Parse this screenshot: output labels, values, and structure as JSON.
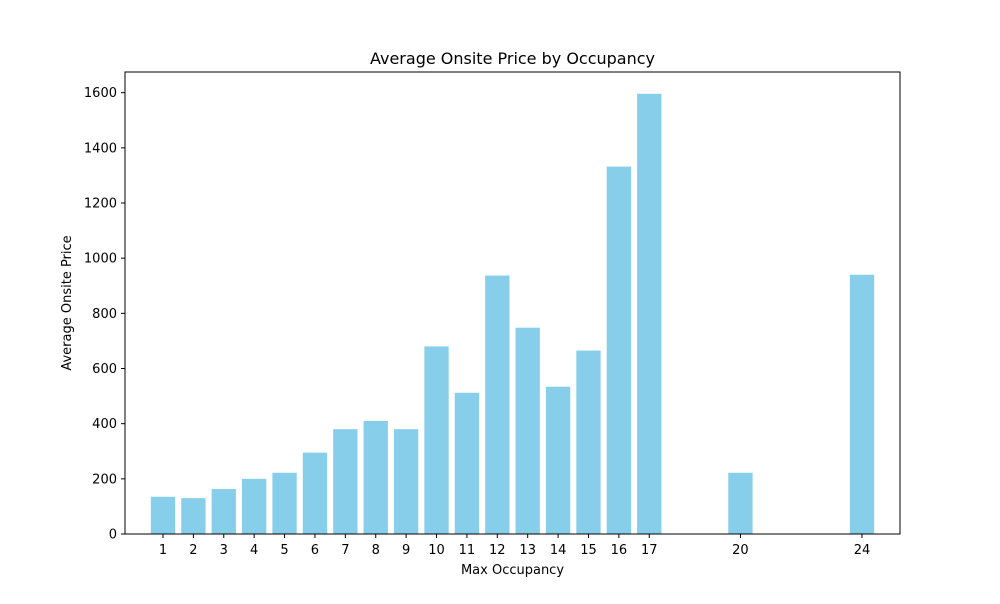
{
  "chart_data": {
    "type": "bar",
    "title": "Average Onsite Price by Occupancy",
    "xlabel": "Max Occupancy",
    "ylabel": "Average Onsite Price",
    "x": [
      1,
      2,
      3,
      4,
      5,
      6,
      7,
      8,
      9,
      10,
      11,
      12,
      13,
      14,
      15,
      16,
      17,
      20,
      24
    ],
    "values": [
      135,
      130,
      163,
      200,
      222,
      295,
      380,
      410,
      380,
      680,
      512,
      937,
      748,
      534,
      665,
      1332,
      1596,
      222,
      940
    ],
    "xlim": [
      -0.25,
      25.25
    ],
    "ylim": [
      0,
      1675
    ],
    "yticks": [
      0,
      200,
      400,
      600,
      800,
      1000,
      1200,
      1400,
      1600
    ],
    "grid": false,
    "bar_color": "#87ceeb"
  }
}
